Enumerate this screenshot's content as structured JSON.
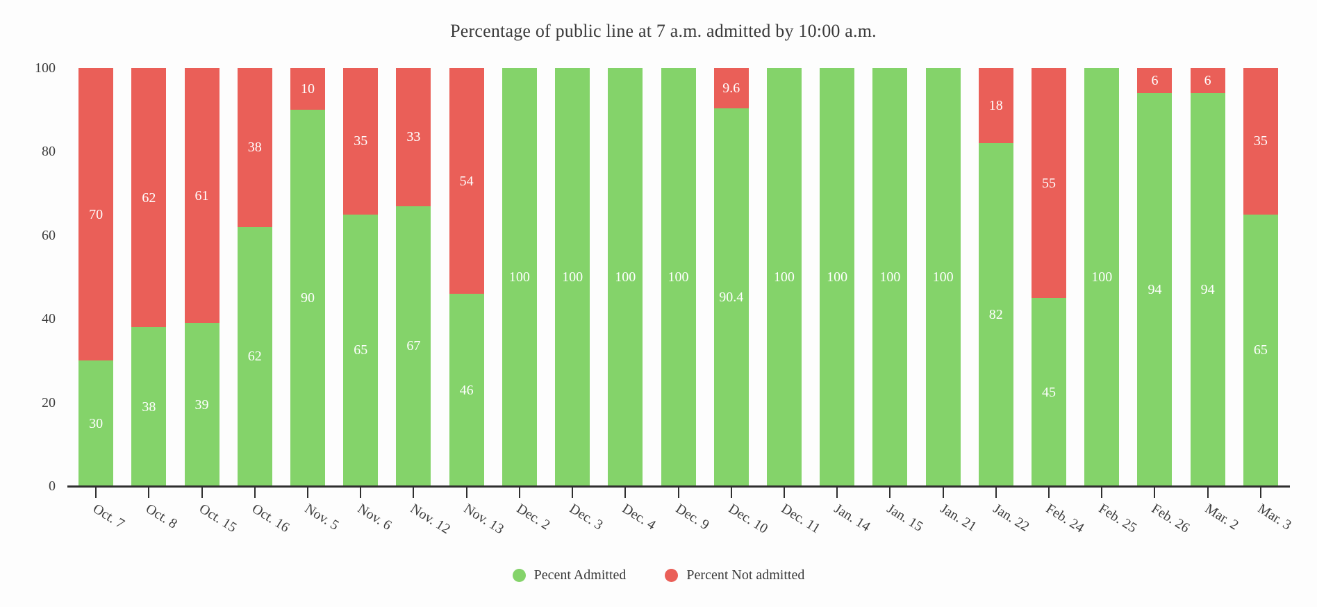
{
  "chart_data": {
    "type": "bar",
    "stacked": true,
    "orientation": "vertical",
    "title": "Percentage of public line at 7 a.m. admitted by 10:00 a.m.",
    "categories": [
      "Oct. 7",
      "Oct. 8",
      "Oct. 15",
      "Oct. 16",
      "Nov. 5",
      "Nov. 6",
      "Nov. 12",
      "Nov. 13",
      "Dec. 2",
      "Dec. 3",
      "Dec. 4",
      "Dec. 9",
      "Dec. 10",
      "Dec. 11",
      "Jan. 14",
      "Jan. 15",
      "Jan. 21",
      "Jan. 22",
      "Feb. 24",
      "Feb. 25",
      "Feb. 26",
      "Mar. 2",
      "Mar. 3"
    ],
    "series": [
      {
        "name": "Pecent Admitted",
        "color": "#84d36a",
        "values": [
          30,
          38,
          39,
          62,
          90,
          65,
          67,
          46,
          100,
          100,
          100,
          100,
          90.4,
          100,
          100,
          100,
          100,
          82,
          45,
          100,
          94,
          94,
          65
        ]
      },
      {
        "name": "Percent Not admitted",
        "color": "#ea5f58",
        "values": [
          70,
          62,
          61,
          38,
          10,
          35,
          33,
          54,
          0,
          0,
          0,
          0,
          9.6,
          0,
          0,
          0,
          0,
          18,
          55,
          0,
          6,
          6,
          35
        ]
      }
    ],
    "bar_value_labels": "white, centered inside each segment, hidden when value is 0",
    "xlabel": "",
    "ylabel": "",
    "y_axis": {
      "ticks": [
        0,
        20,
        40,
        60,
        80,
        100
      ],
      "range": [
        0,
        100
      ]
    },
    "grid": false,
    "legend_position": "bottom-center"
  },
  "colors": {
    "admitted_green": "#84d36a",
    "not_admitted_red": "#ea5f58",
    "text": "#3b3b3b",
    "axis": "#2f2f2f",
    "background": "#fdfdfd",
    "bar_label_text": "#ffffff"
  }
}
